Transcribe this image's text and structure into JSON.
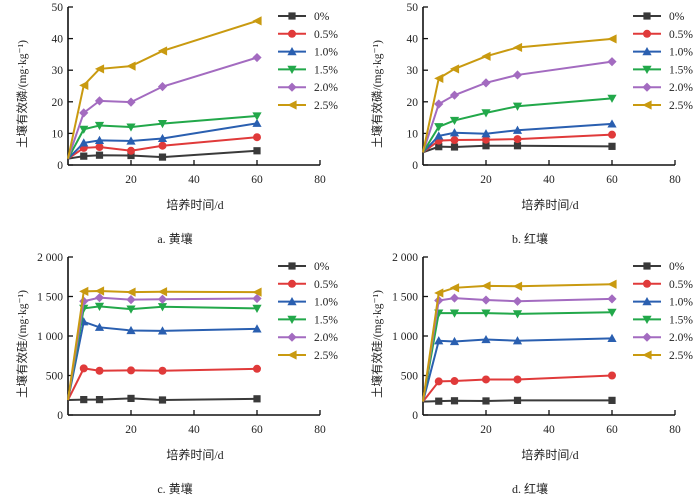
{
  "chart_data": [
    {
      "id": "a",
      "type": "line",
      "caption": "a. 黄壤",
      "title": "",
      "xlabel": "培养时间/d",
      "ylabel": "土壤有效磷/(mg·kg⁻¹)",
      "xlim": [
        0,
        80
      ],
      "ylim": [
        0,
        50
      ],
      "xticks": [
        20,
        40,
        60,
        80
      ],
      "yticks": [
        0,
        10,
        20,
        30,
        40,
        50
      ],
      "ytick_labels": [
        "0",
        "10",
        "20",
        "30",
        "40",
        "50"
      ],
      "legend": "top-right",
      "grid": false,
      "x": [
        0,
        5,
        10,
        20,
        30,
        60
      ],
      "series": [
        {
          "name": "0%",
          "marker": "square",
          "color": "#3a3a3a",
          "values": [
            2.0,
            2.8,
            3.1,
            3.0,
            2.5,
            4.5
          ]
        },
        {
          "name": "0.5%",
          "marker": "circle",
          "color": "#e03a3a",
          "values": [
            2.0,
            5.4,
            5.7,
            4.5,
            6.1,
            8.8
          ]
        },
        {
          "name": "1.0%",
          "marker": "triangle-up",
          "color": "#2a5fb0",
          "values": [
            2.0,
            7.0,
            7.8,
            7.6,
            8.4,
            13.2
          ]
        },
        {
          "name": "1.5%",
          "marker": "triangle-down",
          "color": "#22a84a",
          "values": [
            2.0,
            11.3,
            12.5,
            12.0,
            13.1,
            15.5
          ]
        },
        {
          "name": "2.0%",
          "marker": "diamond",
          "color": "#a36bc0",
          "values": [
            2.0,
            16.5,
            20.3,
            19.9,
            24.8,
            34.0
          ]
        },
        {
          "name": "2.5%",
          "marker": "triangle-left",
          "color": "#c99a10",
          "values": [
            2.0,
            25.2,
            30.4,
            31.3,
            36.1,
            45.6
          ]
        }
      ]
    },
    {
      "id": "b",
      "type": "line",
      "caption": "b. 红壤",
      "title": "",
      "xlabel": "培养时间/d",
      "ylabel": "土壤有效磷/(mg·kg⁻¹)",
      "xlim": [
        0,
        80
      ],
      "ylim": [
        0,
        50
      ],
      "xticks": [
        20,
        40,
        60,
        80
      ],
      "yticks": [
        0,
        10,
        20,
        30,
        40,
        50
      ],
      "ytick_labels": [
        "0",
        "10",
        "20",
        "30",
        "40",
        "50"
      ],
      "legend": "top-right",
      "grid": false,
      "x": [
        0,
        5,
        10,
        20,
        30,
        60
      ],
      "series": [
        {
          "name": "0%",
          "marker": "square",
          "color": "#3a3a3a",
          "values": [
            4.0,
            5.8,
            5.7,
            6.1,
            6.1,
            5.9
          ]
        },
        {
          "name": "0.5%",
          "marker": "circle",
          "color": "#e03a3a",
          "values": [
            4.0,
            7.7,
            7.9,
            8.0,
            8.2,
            9.6
          ]
        },
        {
          "name": "1.0%",
          "marker": "triangle-up",
          "color": "#2a5fb0",
          "values": [
            4.0,
            9.2,
            10.2,
            9.9,
            11.0,
            13.0
          ]
        },
        {
          "name": "1.5%",
          "marker": "triangle-down",
          "color": "#22a84a",
          "values": [
            4.0,
            12.1,
            14.1,
            16.5,
            18.6,
            21.1
          ]
        },
        {
          "name": "2.0%",
          "marker": "diamond",
          "color": "#a36bc0",
          "values": [
            4.0,
            19.3,
            22.1,
            26.0,
            28.5,
            32.7
          ]
        },
        {
          "name": "2.5%",
          "marker": "triangle-left",
          "color": "#c99a10",
          "values": [
            4.0,
            27.4,
            30.4,
            34.4,
            37.2,
            39.9
          ]
        }
      ]
    },
    {
      "id": "c",
      "type": "line",
      "caption": "c. 黄壤",
      "title": "",
      "xlabel": "培养时间/d",
      "ylabel": "土壤有效硅/(mg·kg⁻¹)",
      "xlim": [
        0,
        80
      ],
      "ylim": [
        0,
        2000
      ],
      "xticks": [
        20,
        40,
        60,
        80
      ],
      "yticks": [
        0,
        500,
        1000,
        1500,
        2000
      ],
      "ytick_labels": [
        "0",
        "500",
        "1 000",
        "1 500",
        "2 000"
      ],
      "legend": "top-right",
      "grid": false,
      "x": [
        0,
        5,
        10,
        20,
        30,
        60
      ],
      "series": [
        {
          "name": "0%",
          "marker": "square",
          "color": "#3a3a3a",
          "values": [
            190,
            195,
            195,
            210,
            190,
            205
          ]
        },
        {
          "name": "0.5%",
          "marker": "circle",
          "color": "#e03a3a",
          "values": [
            190,
            590,
            560,
            565,
            560,
            585
          ]
        },
        {
          "name": "1.0%",
          "marker": "triangle-up",
          "color": "#2a5fb0",
          "values": [
            190,
            1180,
            1110,
            1070,
            1065,
            1090
          ]
        },
        {
          "name": "1.5%",
          "marker": "triangle-down",
          "color": "#22a84a",
          "values": [
            190,
            1350,
            1375,
            1340,
            1370,
            1350
          ]
        },
        {
          "name": "2.0%",
          "marker": "diamond",
          "color": "#a36bc0",
          "values": [
            190,
            1440,
            1485,
            1460,
            1465,
            1475
          ]
        },
        {
          "name": "2.5%",
          "marker": "triangle-left",
          "color": "#c99a10",
          "values": [
            190,
            1565,
            1570,
            1555,
            1560,
            1555
          ]
        }
      ]
    },
    {
      "id": "d",
      "type": "line",
      "caption": "d. 红壤",
      "title": "",
      "xlabel": "培养时间/d",
      "ylabel": "土壤有效硅/(mg·kg⁻¹)",
      "xlim": [
        0,
        80
      ],
      "ylim": [
        0,
        2000
      ],
      "xticks": [
        20,
        40,
        60,
        80
      ],
      "yticks": [
        0,
        500,
        1000,
        1500,
        2000
      ],
      "ytick_labels": [
        "0",
        "500",
        "1 000",
        "1 500",
        "2 000"
      ],
      "legend": "top-right",
      "grid": false,
      "x": [
        0,
        5,
        10,
        20,
        30,
        60
      ],
      "series": [
        {
          "name": "0%",
          "marker": "square",
          "color": "#3a3a3a",
          "values": [
            170,
            175,
            180,
            178,
            185,
            185
          ]
        },
        {
          "name": "0.5%",
          "marker": "circle",
          "color": "#e03a3a",
          "values": [
            170,
            425,
            430,
            450,
            450,
            500
          ]
        },
        {
          "name": "1.0%",
          "marker": "triangle-up",
          "color": "#2a5fb0",
          "values": [
            170,
            940,
            930,
            955,
            940,
            970
          ]
        },
        {
          "name": "1.5%",
          "marker": "triangle-down",
          "color": "#22a84a",
          "values": [
            170,
            1290,
            1290,
            1290,
            1280,
            1300
          ]
        },
        {
          "name": "2.0%",
          "marker": "diamond",
          "color": "#a36bc0",
          "values": [
            170,
            1450,
            1480,
            1455,
            1440,
            1470
          ]
        },
        {
          "name": "2.5%",
          "marker": "triangle-left",
          "color": "#c99a10",
          "values": [
            170,
            1545,
            1610,
            1635,
            1630,
            1655
          ]
        }
      ]
    }
  ]
}
